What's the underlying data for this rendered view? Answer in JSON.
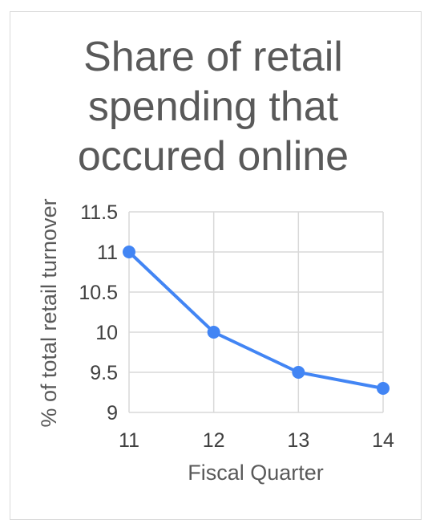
{
  "chart_data": {
    "type": "line",
    "title": "Share of retail spending that occured online",
    "title_lines": [
      "Share of retail",
      "spending that",
      "occured online"
    ],
    "xlabel": "Fiscal Quarter",
    "ylabel": "% of total retail turnover",
    "x": [
      11,
      12,
      13,
      14
    ],
    "x_ticks": [
      "11",
      "12",
      "13",
      "14"
    ],
    "xlim": [
      11,
      14
    ],
    "y_ticks": [
      "9",
      "9.5",
      "10",
      "10.5",
      "11",
      "11.5"
    ],
    "ylim": [
      9,
      11.5
    ],
    "grid": true,
    "legend": "none",
    "series": [
      {
        "values": [
          11,
          10,
          9.5,
          9.3
        ],
        "color": "#4285f4"
      }
    ],
    "colors": {
      "line": "#4285f4",
      "grid": "#d9d9d9",
      "text": "#595959",
      "tick_text": "#404040"
    }
  }
}
